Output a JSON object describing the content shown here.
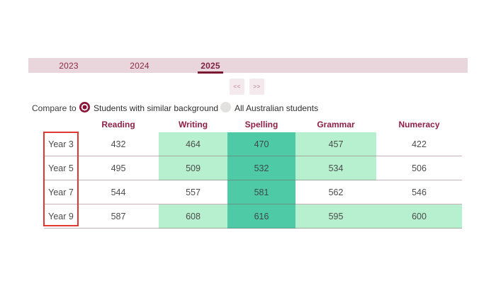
{
  "tabs": {
    "items": [
      {
        "label": "2023",
        "active": false
      },
      {
        "label": "2024",
        "active": false
      },
      {
        "label": "2025",
        "active": true
      }
    ]
  },
  "pager": {
    "prev_label": "<<",
    "next_label": ">>"
  },
  "compare": {
    "label": "Compare to",
    "options": [
      {
        "label": "Students with similar background",
        "selected": true
      },
      {
        "label": "All Australian students",
        "selected": false
      }
    ]
  },
  "table": {
    "columns": [
      "Reading",
      "Writing",
      "Spelling",
      "Grammar",
      "Numeracy"
    ],
    "rows": [
      {
        "year": "Year 3",
        "values": [
          432,
          464,
          470,
          457,
          422
        ],
        "highlights": [
          "none",
          "light-green",
          "teal",
          "light-green",
          "none"
        ]
      },
      {
        "year": "Year 5",
        "values": [
          495,
          509,
          532,
          534,
          506
        ],
        "highlights": [
          "none",
          "light-green",
          "teal",
          "light-green",
          "none"
        ]
      },
      {
        "year": "Year 7",
        "values": [
          544,
          557,
          581,
          562,
          546
        ],
        "highlights": [
          "none",
          "none",
          "teal",
          "none",
          "none"
        ]
      },
      {
        "year": "Year 9",
        "values": [
          587,
          608,
          616,
          595,
          600
        ],
        "highlights": [
          "none",
          "light-green",
          "teal",
          "light-green",
          "light-green"
        ]
      }
    ]
  },
  "colors": {
    "accent_maroon": "#8b2046",
    "tab_bar_bg": "#e9d6dc",
    "active_tab_underline": "#7a1733",
    "radio_selected": "#8b1538",
    "radio_unselected": "#e3e0e0",
    "highlight_light_green": "#b7f0cf",
    "highlight_teal": "#4ecba6",
    "row_border": "#c5a2ab",
    "annotation_red": "#e23730"
  }
}
